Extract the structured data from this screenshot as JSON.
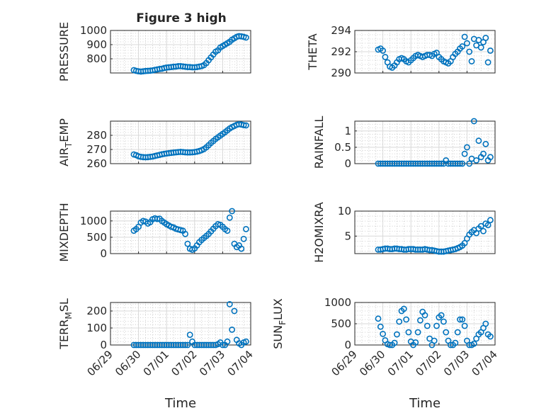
{
  "figure": {
    "title": "Figure 3 high",
    "marker_color": "#0072BD",
    "xlabel": "Time",
    "date_ticks": [
      "06/29",
      "06/30",
      "07/01",
      "07/02",
      "07/03",
      "07/04"
    ],
    "xlim": [
      "2021-06-29T00:00",
      "2021-07-04T00:00"
    ]
  },
  "chart_data": [
    {
      "id": "pressure",
      "type": "scatter",
      "ylabel": "PRESSURE",
      "ylim": [
        700,
        1000
      ],
      "yticks": [
        800,
        900,
        1000
      ],
      "tick_labels": [
        "800",
        "900",
        "1000"
      ],
      "x": [
        "2021-06-29T20:00",
        "2021-06-29T22:00",
        "2021-06-30T00:00",
        "2021-06-30T02:00",
        "2021-06-30T04:00",
        "2021-06-30T06:00",
        "2021-06-30T08:00",
        "2021-06-30T10:00",
        "2021-06-30T12:00",
        "2021-06-30T14:00",
        "2021-06-30T16:00",
        "2021-06-30T18:00",
        "2021-06-30T20:00",
        "2021-06-30T22:00",
        "2021-07-01T00:00",
        "2021-07-01T02:00",
        "2021-07-01T04:00",
        "2021-07-01T06:00",
        "2021-07-01T08:00",
        "2021-07-01T10:00",
        "2021-07-01T12:00",
        "2021-07-01T14:00",
        "2021-07-01T16:00",
        "2021-07-01T18:00",
        "2021-07-01T20:00",
        "2021-07-01T22:00",
        "2021-07-02T00:00",
        "2021-07-02T02:00",
        "2021-07-02T04:00",
        "2021-07-02T06:00",
        "2021-07-02T08:00",
        "2021-07-02T10:00",
        "2021-07-02T12:00",
        "2021-07-02T14:00",
        "2021-07-02T16:00",
        "2021-07-02T18:00",
        "2021-07-02T20:00",
        "2021-07-02T22:00",
        "2021-07-03T00:00",
        "2021-07-03T02:00",
        "2021-07-03T04:00",
        "2021-07-03T06:00",
        "2021-07-03T08:00",
        "2021-07-03T10:00",
        "2021-07-03T12:00",
        "2021-07-03T14:00",
        "2021-07-03T16:00",
        "2021-07-03T18:00",
        "2021-07-03T20:00"
      ],
      "y": [
        720,
        715,
        712,
        710,
        712,
        714,
        715,
        716,
        718,
        722,
        725,
        728,
        730,
        735,
        738,
        740,
        742,
        744,
        745,
        748,
        748,
        746,
        744,
        742,
        742,
        740,
        740,
        742,
        745,
        748,
        755,
        770,
        790,
        810,
        830,
        850,
        860,
        880,
        890,
        900,
        910,
        920,
        935,
        945,
        955,
        960,
        958,
        955,
        950
      ]
    },
    {
      "id": "theta",
      "type": "scatter",
      "ylabel": "THETA",
      "ylim": [
        290,
        294
      ],
      "yticks": [
        290,
        292,
        294
      ],
      "tick_labels": [
        "290",
        "292",
        "294"
      ],
      "x": [
        "2021-06-29T20:00",
        "2021-06-29T22:00",
        "2021-06-30T00:00",
        "2021-06-30T02:00",
        "2021-06-30T04:00",
        "2021-06-30T06:00",
        "2021-06-30T08:00",
        "2021-06-30T10:00",
        "2021-06-30T12:00",
        "2021-06-30T14:00",
        "2021-06-30T16:00",
        "2021-06-30T18:00",
        "2021-06-30T20:00",
        "2021-06-30T22:00",
        "2021-07-01T00:00",
        "2021-07-01T02:00",
        "2021-07-01T04:00",
        "2021-07-01T06:00",
        "2021-07-01T08:00",
        "2021-07-01T10:00",
        "2021-07-01T12:00",
        "2021-07-01T14:00",
        "2021-07-01T16:00",
        "2021-07-01T18:00",
        "2021-07-01T20:00",
        "2021-07-01T22:00",
        "2021-07-02T00:00",
        "2021-07-02T02:00",
        "2021-07-02T04:00",
        "2021-07-02T06:00",
        "2021-07-02T08:00",
        "2021-07-02T10:00",
        "2021-07-02T12:00",
        "2021-07-02T14:00",
        "2021-07-02T16:00",
        "2021-07-02T18:00",
        "2021-07-02T20:00",
        "2021-07-02T22:00",
        "2021-07-03T00:00",
        "2021-07-03T02:00",
        "2021-07-03T04:00",
        "2021-07-03T06:00",
        "2021-07-03T08:00",
        "2021-07-03T10:00",
        "2021-07-03T12:00",
        "2021-07-03T14:00",
        "2021-07-03T16:00",
        "2021-07-03T18:00",
        "2021-07-03T20:00"
      ],
      "y": [
        292.2,
        292.3,
        292.1,
        291.5,
        291.0,
        290.6,
        290.5,
        290.7,
        291.0,
        291.3,
        291.4,
        291.3,
        291.1,
        291.0,
        291.2,
        291.4,
        291.6,
        291.7,
        291.6,
        291.5,
        291.6,
        291.7,
        291.7,
        291.6,
        291.8,
        291.9,
        291.5,
        291.3,
        291.1,
        291.0,
        290.9,
        291.1,
        291.5,
        291.8,
        292.0,
        292.3,
        292.5,
        293.4,
        292.8,
        292.0,
        291.1,
        293.2,
        292.6,
        293.1,
        292.4,
        292.9,
        293.3,
        291.0,
        292.1
      ]
    },
    {
      "id": "air_temp",
      "type": "scatter",
      "ylabel": "AIR_TEMP",
      "ylim": [
        260,
        290
      ],
      "yticks": [
        260,
        270,
        280
      ],
      "tick_labels": [
        "260",
        "270",
        "280"
      ],
      "x": [
        "2021-06-29T20:00",
        "2021-06-29T22:00",
        "2021-06-30T00:00",
        "2021-06-30T02:00",
        "2021-06-30T04:00",
        "2021-06-30T06:00",
        "2021-06-30T08:00",
        "2021-06-30T10:00",
        "2021-06-30T12:00",
        "2021-06-30T14:00",
        "2021-06-30T16:00",
        "2021-06-30T18:00",
        "2021-06-30T20:00",
        "2021-06-30T22:00",
        "2021-07-01T00:00",
        "2021-07-01T02:00",
        "2021-07-01T04:00",
        "2021-07-01T06:00",
        "2021-07-01T08:00",
        "2021-07-01T10:00",
        "2021-07-01T12:00",
        "2021-07-01T14:00",
        "2021-07-01T16:00",
        "2021-07-01T18:00",
        "2021-07-01T20:00",
        "2021-07-01T22:00",
        "2021-07-02T00:00",
        "2021-07-02T02:00",
        "2021-07-02T04:00",
        "2021-07-02T06:00",
        "2021-07-02T08:00",
        "2021-07-02T10:00",
        "2021-07-02T12:00",
        "2021-07-02T14:00",
        "2021-07-02T16:00",
        "2021-07-02T18:00",
        "2021-07-02T20:00",
        "2021-07-02T22:00",
        "2021-07-03T00:00",
        "2021-07-03T02:00",
        "2021-07-03T04:00",
        "2021-07-03T06:00",
        "2021-07-03T08:00",
        "2021-07-03T10:00",
        "2021-07-03T12:00",
        "2021-07-03T14:00",
        "2021-07-03T16:00",
        "2021-07-03T18:00",
        "2021-07-03T20:00"
      ],
      "y": [
        266.5,
        266.0,
        265.2,
        264.8,
        264.6,
        264.5,
        264.6,
        264.8,
        265.0,
        265.4,
        265.8,
        266.2,
        266.6,
        266.9,
        267.2,
        267.4,
        267.6,
        267.8,
        268.0,
        268.2,
        268.3,
        268.2,
        268.0,
        267.9,
        267.9,
        268.0,
        268.2,
        268.5,
        268.9,
        269.5,
        270.3,
        271.5,
        273.0,
        274.6,
        276.0,
        277.4,
        278.6,
        279.8,
        281.0,
        282.2,
        283.5,
        284.8,
        285.8,
        286.6,
        287.4,
        287.8,
        287.6,
        287.2,
        287.0
      ]
    },
    {
      "id": "rainfall",
      "type": "scatter",
      "ylabel": "RAINFALL",
      "ylim": [
        0,
        1.3
      ],
      "yticks": [
        0,
        0.5,
        1
      ],
      "tick_labels": [
        "0",
        "0.5",
        "1"
      ],
      "x": [
        "2021-06-29T20:00",
        "2021-06-29T22:00",
        "2021-06-30T00:00",
        "2021-06-30T02:00",
        "2021-06-30T04:00",
        "2021-06-30T06:00",
        "2021-06-30T08:00",
        "2021-06-30T10:00",
        "2021-06-30T12:00",
        "2021-06-30T14:00",
        "2021-06-30T16:00",
        "2021-06-30T18:00",
        "2021-06-30T20:00",
        "2021-06-30T22:00",
        "2021-07-01T00:00",
        "2021-07-01T02:00",
        "2021-07-01T04:00",
        "2021-07-01T06:00",
        "2021-07-01T08:00",
        "2021-07-01T10:00",
        "2021-07-01T12:00",
        "2021-07-01T14:00",
        "2021-07-01T16:00",
        "2021-07-01T18:00",
        "2021-07-01T20:00",
        "2021-07-01T22:00",
        "2021-07-02T00:00",
        "2021-07-02T02:00",
        "2021-07-02T04:00",
        "2021-07-02T06:00",
        "2021-07-02T08:00",
        "2021-07-02T10:00",
        "2021-07-02T12:00",
        "2021-07-02T14:00",
        "2021-07-02T16:00",
        "2021-07-02T18:00",
        "2021-07-02T20:00",
        "2021-07-02T22:00",
        "2021-07-03T00:00",
        "2021-07-03T02:00",
        "2021-07-03T04:00",
        "2021-07-03T06:00",
        "2021-07-03T08:00",
        "2021-07-03T10:00",
        "2021-07-03T12:00",
        "2021-07-03T14:00",
        "2021-07-03T16:00",
        "2021-07-03T18:00",
        "2021-07-03T20:00"
      ],
      "y": [
        0,
        0,
        0,
        0,
        0,
        0,
        0,
        0,
        0,
        0,
        0,
        0,
        0,
        0,
        0,
        0,
        0,
        0,
        0,
        0,
        0,
        0,
        0,
        0,
        0,
        0,
        0,
        0,
        0,
        0.1,
        0,
        0,
        0,
        0,
        0,
        0,
        0,
        0.3,
        0.5,
        0,
        0.15,
        1.3,
        0.1,
        0.7,
        0.2,
        0.3,
        0.6,
        0.1,
        0.2
      ]
    },
    {
      "id": "mixdepth",
      "type": "scatter",
      "ylabel": "MIXDEPTH",
      "ylim": [
        0,
        1300
      ],
      "yticks": [
        0,
        500,
        1000
      ],
      "tick_labels": [
        "0",
        "500",
        "1000"
      ],
      "x": [
        "2021-06-29T20:00",
        "2021-06-29T22:00",
        "2021-06-30T00:00",
        "2021-06-30T02:00",
        "2021-06-30T04:00",
        "2021-06-30T06:00",
        "2021-06-30T08:00",
        "2021-06-30T10:00",
        "2021-06-30T12:00",
        "2021-06-30T14:00",
        "2021-06-30T16:00",
        "2021-06-30T18:00",
        "2021-06-30T20:00",
        "2021-06-30T22:00",
        "2021-07-01T00:00",
        "2021-07-01T02:00",
        "2021-07-01T04:00",
        "2021-07-01T06:00",
        "2021-07-01T08:00",
        "2021-07-01T10:00",
        "2021-07-01T12:00",
        "2021-07-01T14:00",
        "2021-07-01T16:00",
        "2021-07-01T18:00",
        "2021-07-01T20:00",
        "2021-07-01T22:00",
        "2021-07-02T00:00",
        "2021-07-02T02:00",
        "2021-07-02T04:00",
        "2021-07-02T06:00",
        "2021-07-02T08:00",
        "2021-07-02T10:00",
        "2021-07-02T12:00",
        "2021-07-02T14:00",
        "2021-07-02T16:00",
        "2021-07-02T18:00",
        "2021-07-02T20:00",
        "2021-07-02T22:00",
        "2021-07-03T00:00",
        "2021-07-03T02:00",
        "2021-07-03T04:00",
        "2021-07-03T06:00",
        "2021-07-03T08:00",
        "2021-07-03T10:00",
        "2021-07-03T12:00",
        "2021-07-03T14:00",
        "2021-07-03T16:00",
        "2021-07-03T18:00",
        "2021-07-03T20:00"
      ],
      "y": [
        700,
        750,
        820,
        950,
        1000,
        980,
        920,
        960,
        1050,
        1080,
        1060,
        1070,
        1000,
        950,
        900,
        860,
        820,
        800,
        760,
        740,
        720,
        700,
        600,
        300,
        150,
        120,
        160,
        250,
        350,
        420,
        480,
        540,
        600,
        680,
        760,
        840,
        900,
        880,
        820,
        750,
        700,
        1100,
        1300,
        300,
        200,
        250,
        150,
        450,
        750
      ]
    },
    {
      "id": "h2omixra",
      "type": "scatter",
      "ylabel": "H2OMIXRA",
      "ylim": [
        1.5,
        10
      ],
      "yticks": [
        5,
        10
      ],
      "tick_labels": [
        "5",
        "10"
      ],
      "x": [
        "2021-06-29T20:00",
        "2021-06-29T22:00",
        "2021-06-30T00:00",
        "2021-06-30T02:00",
        "2021-06-30T04:00",
        "2021-06-30T06:00",
        "2021-06-30T08:00",
        "2021-06-30T10:00",
        "2021-06-30T12:00",
        "2021-06-30T14:00",
        "2021-06-30T16:00",
        "2021-06-30T18:00",
        "2021-06-30T20:00",
        "2021-06-30T22:00",
        "2021-07-01T00:00",
        "2021-07-01T02:00",
        "2021-07-01T04:00",
        "2021-07-01T06:00",
        "2021-07-01T08:00",
        "2021-07-01T10:00",
        "2021-07-01T12:00",
        "2021-07-01T14:00",
        "2021-07-01T16:00",
        "2021-07-01T18:00",
        "2021-07-01T20:00",
        "2021-07-01T22:00",
        "2021-07-02T00:00",
        "2021-07-02T02:00",
        "2021-07-02T04:00",
        "2021-07-02T06:00",
        "2021-07-02T08:00",
        "2021-07-02T10:00",
        "2021-07-02T12:00",
        "2021-07-02T14:00",
        "2021-07-02T16:00",
        "2021-07-02T18:00",
        "2021-07-02T20:00",
        "2021-07-02T22:00",
        "2021-07-03T00:00",
        "2021-07-03T02:00",
        "2021-07-03T04:00",
        "2021-07-03T06:00",
        "2021-07-03T08:00",
        "2021-07-03T10:00",
        "2021-07-03T12:00",
        "2021-07-03T14:00",
        "2021-07-03T16:00",
        "2021-07-03T18:00",
        "2021-07-03T20:00"
      ],
      "y": [
        2.3,
        2.3,
        2.4,
        2.5,
        2.5,
        2.4,
        2.4,
        2.5,
        2.5,
        2.4,
        2.4,
        2.3,
        2.3,
        2.4,
        2.4,
        2.4,
        2.3,
        2.3,
        2.3,
        2.3,
        2.4,
        2.3,
        2.2,
        2.2,
        2.1,
        2.0,
        1.9,
        1.9,
        1.9,
        2.0,
        2.1,
        2.2,
        2.3,
        2.4,
        2.6,
        2.8,
        3.1,
        3.6,
        4.5,
        5.3,
        5.8,
        6.2,
        5.6,
        6.5,
        7.0,
        6.0,
        7.5,
        7.2,
        8.2
      ]
    },
    {
      "id": "terr_msl",
      "type": "scatter",
      "ylabel": "TERR_MSL",
      "ylim": [
        0,
        250
      ],
      "yticks": [
        0,
        100,
        200
      ],
      "tick_labels": [
        "0",
        "100",
        "200"
      ],
      "x": [
        "2021-06-29T20:00",
        "2021-06-29T22:00",
        "2021-06-30T00:00",
        "2021-06-30T02:00",
        "2021-06-30T04:00",
        "2021-06-30T06:00",
        "2021-06-30T08:00",
        "2021-06-30T10:00",
        "2021-06-30T12:00",
        "2021-06-30T14:00",
        "2021-06-30T16:00",
        "2021-06-30T18:00",
        "2021-06-30T20:00",
        "2021-06-30T22:00",
        "2021-07-01T00:00",
        "2021-07-01T02:00",
        "2021-07-01T04:00",
        "2021-07-01T06:00",
        "2021-07-01T08:00",
        "2021-07-01T10:00",
        "2021-07-01T12:00",
        "2021-07-01T14:00",
        "2021-07-01T16:00",
        "2021-07-01T18:00",
        "2021-07-01T20:00",
        "2021-07-01T22:00",
        "2021-07-02T00:00",
        "2021-07-02T02:00",
        "2021-07-02T04:00",
        "2021-07-02T06:00",
        "2021-07-02T08:00",
        "2021-07-02T10:00",
        "2021-07-02T12:00",
        "2021-07-02T14:00",
        "2021-07-02T16:00",
        "2021-07-02T18:00",
        "2021-07-02T20:00",
        "2021-07-02T22:00",
        "2021-07-03T00:00",
        "2021-07-03T02:00",
        "2021-07-03T04:00",
        "2021-07-03T06:00",
        "2021-07-03T08:00",
        "2021-07-03T10:00",
        "2021-07-03T12:00",
        "2021-07-03T14:00",
        "2021-07-03T16:00",
        "2021-07-03T18:00",
        "2021-07-03T20:00"
      ],
      "y": [
        0,
        0,
        0,
        0,
        0,
        0,
        0,
        0,
        0,
        0,
        0,
        0,
        0,
        0,
        0,
        0,
        0,
        0,
        0,
        0,
        0,
        0,
        0,
        0,
        60,
        20,
        0,
        0,
        0,
        0,
        0,
        0,
        0,
        0,
        0,
        0,
        5,
        15,
        0,
        0,
        20,
        240,
        90,
        200,
        30,
        10,
        0,
        15,
        20
      ]
    },
    {
      "id": "sun_flux",
      "type": "scatter",
      "ylabel": "SUN_FLUX",
      "ylim": [
        0,
        1000
      ],
      "yticks": [
        0,
        500,
        1000
      ],
      "tick_labels": [
        "0",
        "500",
        "1000"
      ],
      "x": [
        "2021-06-29T20:00",
        "2021-06-29T22:00",
        "2021-06-30T00:00",
        "2021-06-30T02:00",
        "2021-06-30T04:00",
        "2021-06-30T06:00",
        "2021-06-30T08:00",
        "2021-06-30T10:00",
        "2021-06-30T12:00",
        "2021-06-30T14:00",
        "2021-06-30T16:00",
        "2021-06-30T18:00",
        "2021-06-30T20:00",
        "2021-06-30T22:00",
        "2021-07-01T00:00",
        "2021-07-01T02:00",
        "2021-07-01T04:00",
        "2021-07-01T06:00",
        "2021-07-01T08:00",
        "2021-07-01T10:00",
        "2021-07-01T12:00",
        "2021-07-01T14:00",
        "2021-07-01T16:00",
        "2021-07-01T18:00",
        "2021-07-01T20:00",
        "2021-07-01T22:00",
        "2021-07-02T00:00",
        "2021-07-02T02:00",
        "2021-07-02T04:00",
        "2021-07-02T06:00",
        "2021-07-02T08:00",
        "2021-07-02T10:00",
        "2021-07-02T12:00",
        "2021-07-02T14:00",
        "2021-07-02T16:00",
        "2021-07-02T18:00",
        "2021-07-02T20:00",
        "2021-07-02T22:00",
        "2021-07-03T00:00",
        "2021-07-03T02:00",
        "2021-07-03T04:00",
        "2021-07-03T06:00",
        "2021-07-03T08:00",
        "2021-07-03T10:00",
        "2021-07-03T12:00",
        "2021-07-03T14:00",
        "2021-07-03T16:00",
        "2021-07-03T18:00",
        "2021-07-03T20:00"
      ],
      "y": [
        620,
        430,
        260,
        110,
        20,
        0,
        0,
        50,
        250,
        550,
        800,
        850,
        600,
        300,
        80,
        0,
        60,
        300,
        580,
        780,
        700,
        450,
        150,
        0,
        100,
        450,
        650,
        700,
        550,
        300,
        100,
        0,
        0,
        50,
        300,
        600,
        600,
        450,
        100,
        0,
        0,
        30,
        150,
        250,
        300,
        400,
        500,
        250,
        200
      ]
    }
  ]
}
